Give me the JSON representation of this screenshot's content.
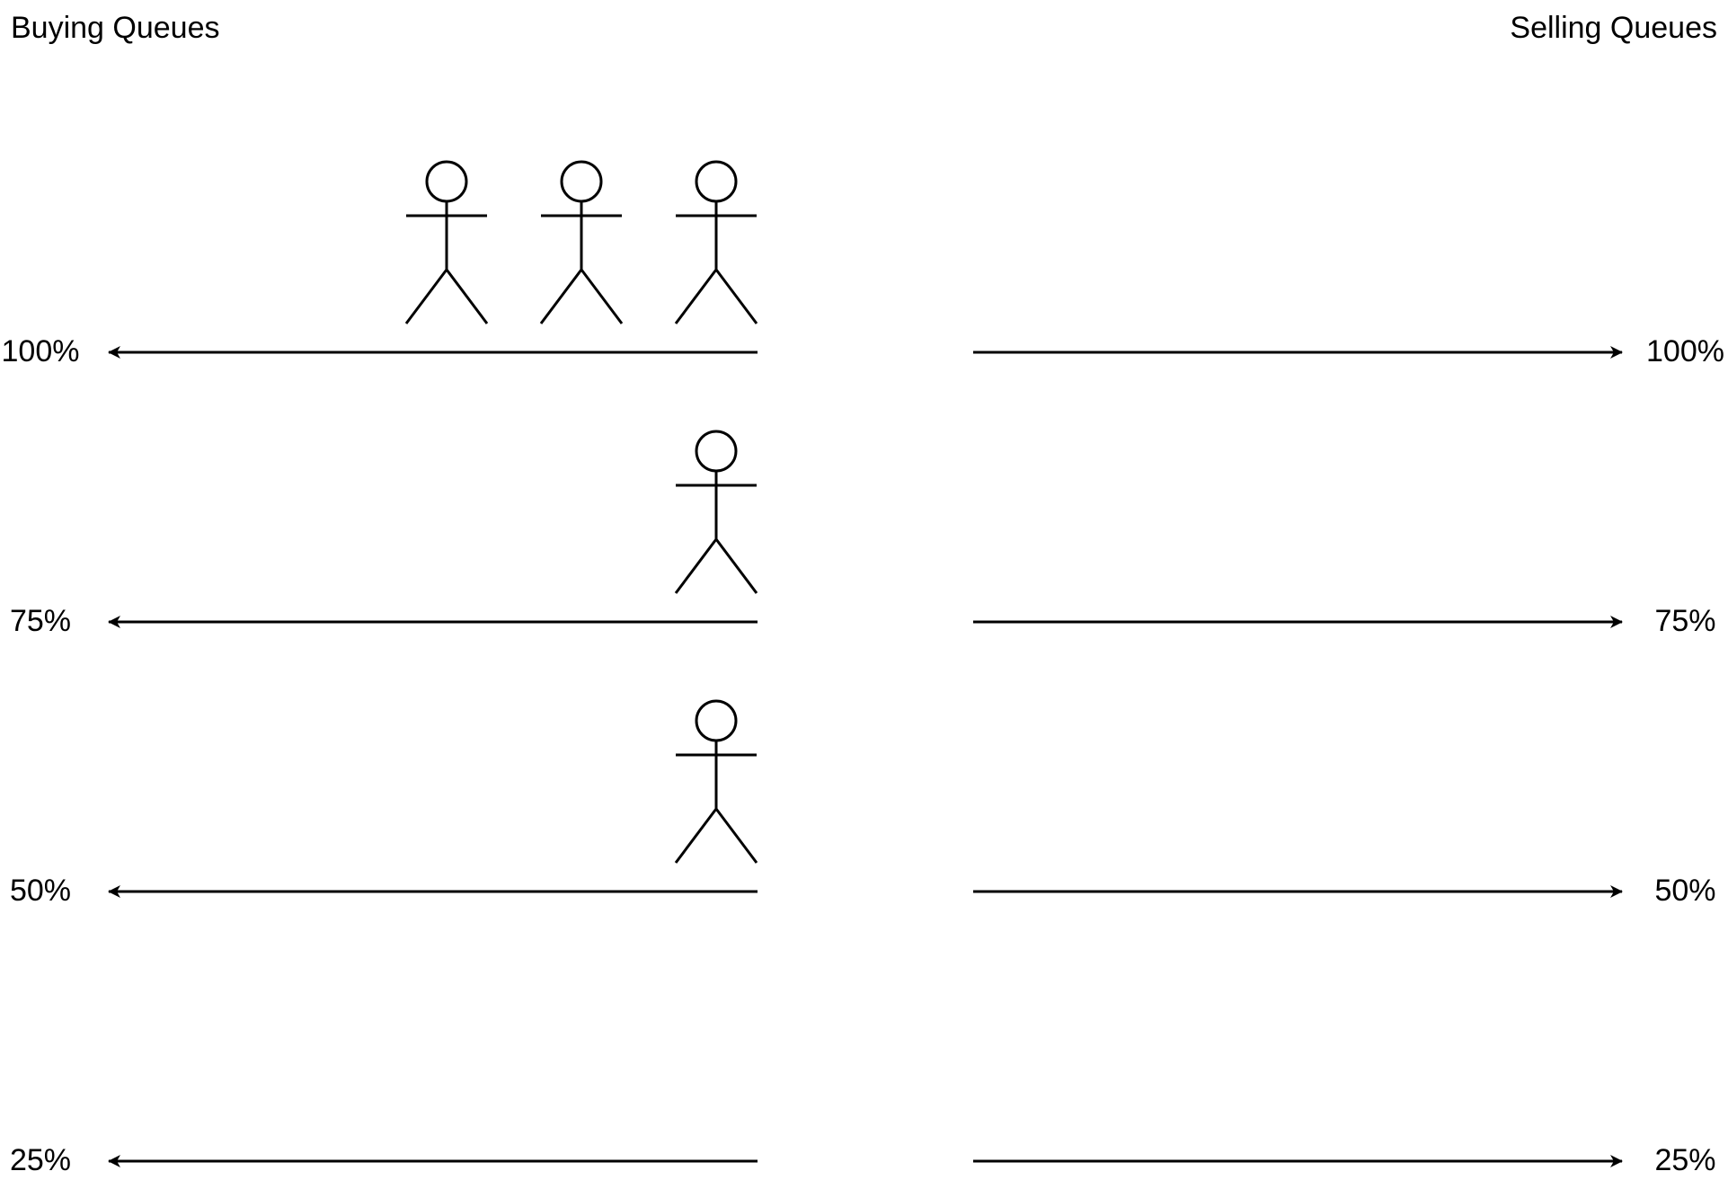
{
  "titles": {
    "buying": "Buying Queues",
    "selling": "Selling Queues"
  },
  "queue_levels": [
    {
      "label": "100%",
      "buyers_waiting": 3,
      "sellers_waiting": 0
    },
    {
      "label": "75%",
      "buyers_waiting": 1,
      "sellers_waiting": 0
    },
    {
      "label": "50%",
      "buyers_waiting": 1,
      "sellers_waiting": 0
    },
    {
      "label": "25%",
      "buyers_waiting": 0,
      "sellers_waiting": 0
    }
  ],
  "colors": {
    "stroke": "#000000",
    "background": "#ffffff"
  },
  "icons": {
    "person": "stick-figure-icon",
    "arrow": "arrow-head-icon"
  }
}
